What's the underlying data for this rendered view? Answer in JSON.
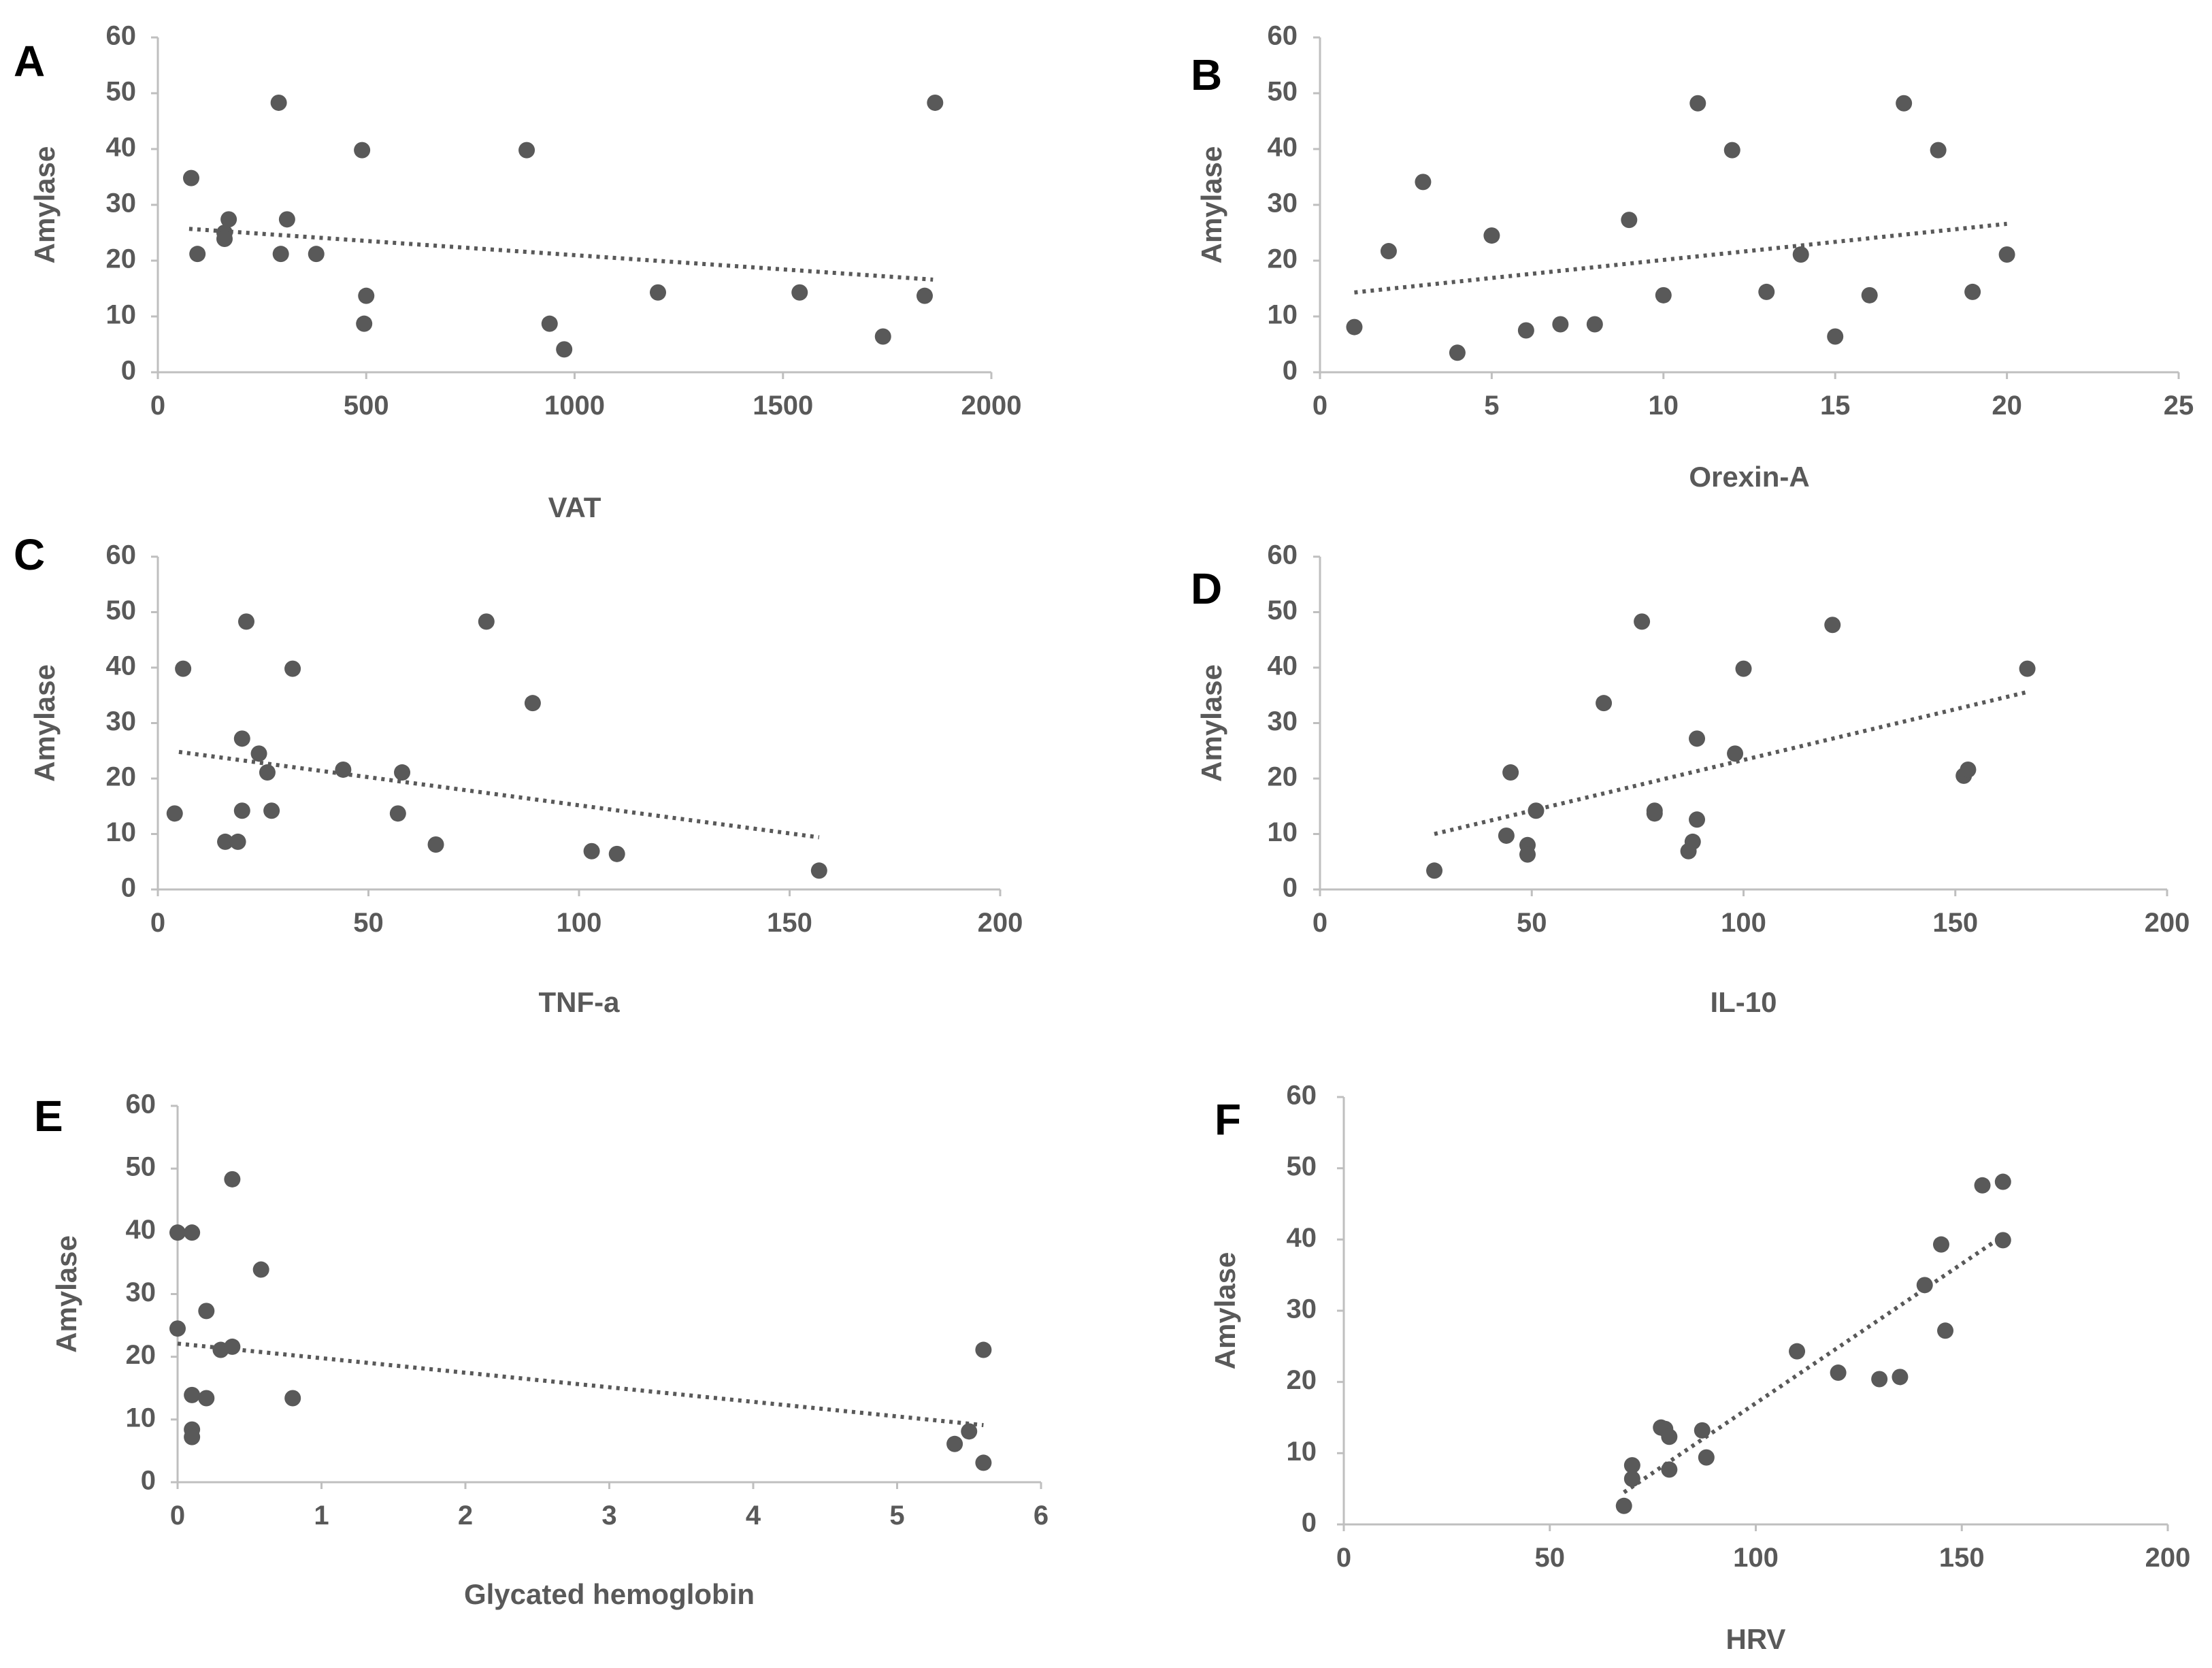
{
  "chart_data": [
    {
      "type": "scatter",
      "panel": "A",
      "xlabel": "VAT",
      "ylabel": "Amylase",
      "xlim": [
        0,
        2000
      ],
      "ylim": [
        0,
        60
      ],
      "xticks": [
        "0",
        "500",
        "1000",
        "1500",
        "2000"
      ],
      "yticks": [
        "0",
        "10",
        "20",
        "30",
        "40",
        "50",
        "60"
      ],
      "trendline": {
        "style": "dotted",
        "x": [
          75,
          1860
        ],
        "y": [
          25.7,
          16.6
        ]
      },
      "points": [
        {
          "x": 80,
          "y": 34.8
        },
        {
          "x": 95,
          "y": 21.2
        },
        {
          "x": 160,
          "y": 25.0
        },
        {
          "x": 160,
          "y": 23.9
        },
        {
          "x": 170,
          "y": 27.4
        },
        {
          "x": 290,
          "y": 48.3
        },
        {
          "x": 295,
          "y": 21.2
        },
        {
          "x": 310,
          "y": 27.4
        },
        {
          "x": 380,
          "y": 21.2
        },
        {
          "x": 490,
          "y": 39.8
        },
        {
          "x": 495,
          "y": 8.7
        },
        {
          "x": 500,
          "y": 13.7
        },
        {
          "x": 885,
          "y": 39.8
        },
        {
          "x": 940,
          "y": 8.7
        },
        {
          "x": 975,
          "y": 4.1
        },
        {
          "x": 1200,
          "y": 14.3
        },
        {
          "x": 1540,
          "y": 14.3
        },
        {
          "x": 1740,
          "y": 6.4
        },
        {
          "x": 1840,
          "y": 13.7
        },
        {
          "x": 1865,
          "y": 48.3
        }
      ]
    },
    {
      "type": "scatter",
      "panel": "B",
      "xlabel": "Orexin-A",
      "ylabel": "Amylase",
      "xlim": [
        0,
        25
      ],
      "ylim": [
        0,
        60
      ],
      "xticks": [
        "0",
        "5",
        "10",
        "15",
        "20",
        "25"
      ],
      "yticks": [
        "0",
        "10",
        "20",
        "30",
        "40",
        "50",
        "60"
      ],
      "trendline": {
        "style": "dotted",
        "x": [
          1,
          20
        ],
        "y": [
          14.3,
          26.6
        ]
      },
      "points": [
        {
          "x": 1,
          "y": 8.1
        },
        {
          "x": 2,
          "y": 21.7
        },
        {
          "x": 3,
          "y": 34.1
        },
        {
          "x": 4,
          "y": 3.5
        },
        {
          "x": 5,
          "y": 24.5
        },
        {
          "x": 6,
          "y": 7.5
        },
        {
          "x": 7,
          "y": 8.6
        },
        {
          "x": 8,
          "y": 8.6
        },
        {
          "x": 9,
          "y": 27.3
        },
        {
          "x": 10,
          "y": 13.8
        },
        {
          "x": 11,
          "y": 48.2
        },
        {
          "x": 12,
          "y": 39.8
        },
        {
          "x": 13,
          "y": 14.4
        },
        {
          "x": 14,
          "y": 21.1
        },
        {
          "x": 15,
          "y": 6.4
        },
        {
          "x": 16,
          "y": 13.8
        },
        {
          "x": 17,
          "y": 48.2
        },
        {
          "x": 18,
          "y": 39.8
        },
        {
          "x": 19,
          "y": 14.4
        },
        {
          "x": 20,
          "y": 21.1
        }
      ]
    },
    {
      "type": "scatter",
      "panel": "C",
      "xlabel": "TNF-a",
      "ylabel": "Amylase",
      "xlim": [
        0,
        200
      ],
      "ylim": [
        0,
        60
      ],
      "xticks": [
        "0",
        "50",
        "100",
        "150",
        "200"
      ],
      "yticks": [
        "0",
        "10",
        "20",
        "30",
        "40",
        "50",
        "60"
      ],
      "trendline": {
        "style": "dotted",
        "x": [
          5,
          157
        ],
        "y": [
          24.8,
          9.4
        ]
      },
      "points": [
        {
          "x": 4,
          "y": 13.7
        },
        {
          "x": 6,
          "y": 39.8
        },
        {
          "x": 16,
          "y": 8.6
        },
        {
          "x": 19,
          "y": 8.6
        },
        {
          "x": 20,
          "y": 14.2
        },
        {
          "x": 20,
          "y": 27.2
        },
        {
          "x": 21,
          "y": 48.3
        },
        {
          "x": 24,
          "y": 24.5
        },
        {
          "x": 26,
          "y": 21.1
        },
        {
          "x": 27,
          "y": 14.2
        },
        {
          "x": 32,
          "y": 39.8
        },
        {
          "x": 44,
          "y": 21.6
        },
        {
          "x": 57,
          "y": 13.7
        },
        {
          "x": 58,
          "y": 21.1
        },
        {
          "x": 66,
          "y": 8.1
        },
        {
          "x": 78,
          "y": 48.3
        },
        {
          "x": 89,
          "y": 33.6
        },
        {
          "x": 103,
          "y": 6.9
        },
        {
          "x": 109,
          "y": 6.4
        },
        {
          "x": 157,
          "y": 3.4
        }
      ]
    },
    {
      "type": "scatter",
      "panel": "D",
      "xlabel": "IL-10",
      "ylabel": "Amylase",
      "xlim": [
        0,
        200
      ],
      "ylim": [
        0,
        60
      ],
      "xticks": [
        "0",
        "50",
        "100",
        "150",
        "200"
      ],
      "yticks": [
        "0",
        "10",
        "20",
        "30",
        "40",
        "50",
        "60"
      ],
      "trendline": {
        "style": "dotted",
        "x": [
          27,
          167
        ],
        "y": [
          10.0,
          35.6
        ]
      },
      "points": [
        {
          "x": 27,
          "y": 3.4
        },
        {
          "x": 44,
          "y": 9.7
        },
        {
          "x": 45,
          "y": 21.1
        },
        {
          "x": 49,
          "y": 8.0
        },
        {
          "x": 49,
          "y": 6.3
        },
        {
          "x": 51,
          "y": 14.2
        },
        {
          "x": 67,
          "y": 33.6
        },
        {
          "x": 76,
          "y": 48.3
        },
        {
          "x": 79,
          "y": 14.2
        },
        {
          "x": 79,
          "y": 13.7
        },
        {
          "x": 87,
          "y": 6.9
        },
        {
          "x": 88,
          "y": 8.6
        },
        {
          "x": 89,
          "y": 12.6
        },
        {
          "x": 89,
          "y": 27.2
        },
        {
          "x": 98,
          "y": 24.5
        },
        {
          "x": 100,
          "y": 39.8
        },
        {
          "x": 121,
          "y": 47.7
        },
        {
          "x": 152,
          "y": 20.5
        },
        {
          "x": 153,
          "y": 21.6
        },
        {
          "x": 167,
          "y": 39.8
        }
      ]
    },
    {
      "type": "scatter",
      "panel": "E",
      "xlabel": "Glycated hemoglobin",
      "ylabel": "Amylase",
      "xlim": [
        0,
        6
      ],
      "ylim": [
        0,
        60
      ],
      "xticks": [
        "0",
        "1",
        "2",
        "3",
        "4",
        "5",
        "6"
      ],
      "yticks": [
        "0",
        "10",
        "20",
        "30",
        "40",
        "50",
        "60"
      ],
      "trendline": {
        "style": "dotted",
        "x": [
          0,
          5.6
        ],
        "y": [
          22.1,
          9.1
        ]
      },
      "points": [
        {
          "x": 0.0,
          "y": 39.8
        },
        {
          "x": 0.0,
          "y": 24.5
        },
        {
          "x": 0.1,
          "y": 39.8
        },
        {
          "x": 0.1,
          "y": 13.9
        },
        {
          "x": 0.1,
          "y": 8.4
        },
        {
          "x": 0.1,
          "y": 7.2
        },
        {
          "x": 0.2,
          "y": 27.3
        },
        {
          "x": 0.2,
          "y": 13.4
        },
        {
          "x": 0.3,
          "y": 21.1
        },
        {
          "x": 0.38,
          "y": 48.3
        },
        {
          "x": 0.38,
          "y": 21.6
        },
        {
          "x": 0.58,
          "y": 33.9
        },
        {
          "x": 0.8,
          "y": 13.4
        },
        {
          "x": 5.4,
          "y": 6.1
        },
        {
          "x": 5.5,
          "y": 8.1
        },
        {
          "x": 5.6,
          "y": 21.1
        },
        {
          "x": 5.6,
          "y": 3.1
        }
      ]
    },
    {
      "type": "scatter",
      "panel": "F",
      "xlabel": "HRV",
      "ylabel": "Amylase",
      "xlim": [
        0,
        200
      ],
      "ylim": [
        0,
        60
      ],
      "xticks": [
        "0",
        "50",
        "100",
        "150",
        "200"
      ],
      "yticks": [
        "0",
        "10",
        "20",
        "30",
        "40",
        "50",
        "60"
      ],
      "trendline": {
        "style": "dotted",
        "x": [
          68,
          160
        ],
        "y": [
          4.5,
          40.5
        ]
      },
      "points": [
        {
          "x": 68,
          "y": 2.6
        },
        {
          "x": 70,
          "y": 8.3
        },
        {
          "x": 70,
          "y": 6.4
        },
        {
          "x": 77,
          "y": 13.6
        },
        {
          "x": 78,
          "y": 13.4
        },
        {
          "x": 79,
          "y": 7.7
        },
        {
          "x": 79,
          "y": 12.3
        },
        {
          "x": 87,
          "y": 13.2
        },
        {
          "x": 88,
          "y": 9.4
        },
        {
          "x": 110,
          "y": 24.3
        },
        {
          "x": 120,
          "y": 21.3
        },
        {
          "x": 130,
          "y": 20.4
        },
        {
          "x": 135,
          "y": 20.7
        },
        {
          "x": 141,
          "y": 33.6
        },
        {
          "x": 145,
          "y": 39.3
        },
        {
          "x": 146,
          "y": 27.2
        },
        {
          "x": 155,
          "y": 47.6
        },
        {
          "x": 160,
          "y": 48.1
        },
        {
          "x": 160,
          "y": 39.9
        }
      ]
    }
  ]
}
